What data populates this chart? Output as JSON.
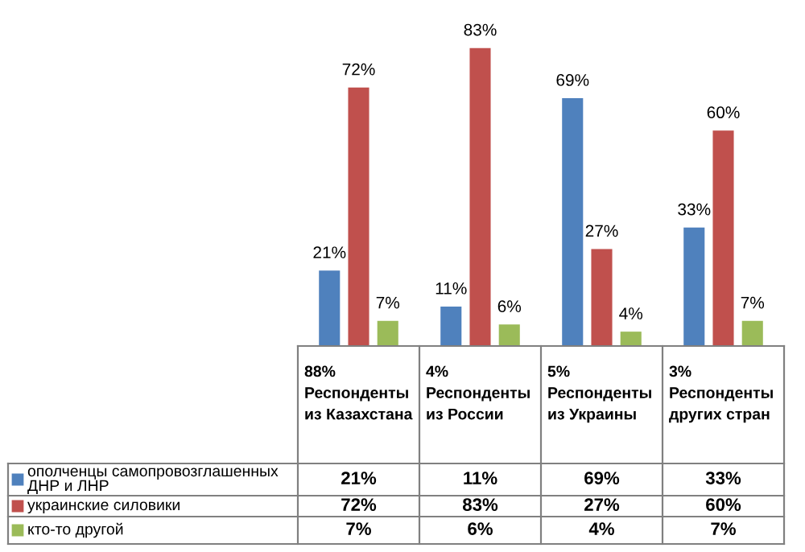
{
  "chart_data": {
    "type": "bar",
    "categories": [
      "88%\nРеспонденты\nиз Казахстана",
      "4%\nРеспонденты\nиз России",
      "5%\nРеспонденты\nиз Украины",
      "3%\nРеспонденты\nдругих стран"
    ],
    "legend": "left",
    "series": [
      {
        "name": "ополченцы самопровозглашенных\nДНР и ЛНР",
        "color": "#4f81bd",
        "values": [
          21,
          11,
          69,
          33
        ],
        "value_labels": [
          "21%",
          "11%",
          "69%",
          "33%"
        ]
      },
      {
        "name": "украинские силовики",
        "color": "#c0504d",
        "values": [
          72,
          83,
          27,
          60
        ],
        "value_labels": [
          "72%",
          "83%",
          "27%",
          "60%"
        ]
      },
      {
        "name": "кто-то другой",
        "color": "#9bbb59",
        "values": [
          7,
          6,
          4,
          7
        ],
        "value_labels": [
          "7%",
          "6%",
          "4%",
          "7%"
        ]
      }
    ]
  }
}
